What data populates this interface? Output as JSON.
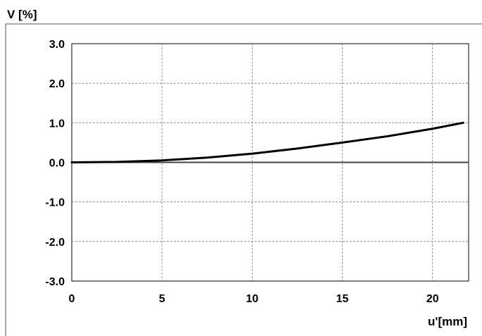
{
  "chart_data": {
    "type": "line",
    "title": "",
    "ylabel": "V [%]",
    "xlabel": "u'[mm]",
    "xlim": [
      0,
      22
    ],
    "ylim": [
      -3.0,
      3.0
    ],
    "x_ticks": [
      0,
      5,
      10,
      15,
      20
    ],
    "x_tick_labels": [
      "0",
      "5",
      "10",
      "15",
      "20"
    ],
    "y_ticks": [
      3.0,
      2.0,
      1.0,
      0.0,
      -1.0,
      -2.0,
      -3.0
    ],
    "y_tick_labels": [
      "3.0",
      "2.0",
      "1.0",
      "0.0",
      "-1.0",
      "-2.0",
      "-3.0"
    ],
    "grid": true,
    "series": [
      {
        "color": "#000000",
        "x": [
          0,
          2.5,
          5,
          7.5,
          10,
          12.5,
          15,
          17.5,
          20,
          21.7
        ],
        "y": [
          0.0,
          0.012,
          0.05,
          0.12,
          0.22,
          0.35,
          0.5,
          0.66,
          0.85,
          1.0
        ]
      }
    ],
    "zero_line": {
      "y": 0.0,
      "color": "#444444"
    }
  }
}
